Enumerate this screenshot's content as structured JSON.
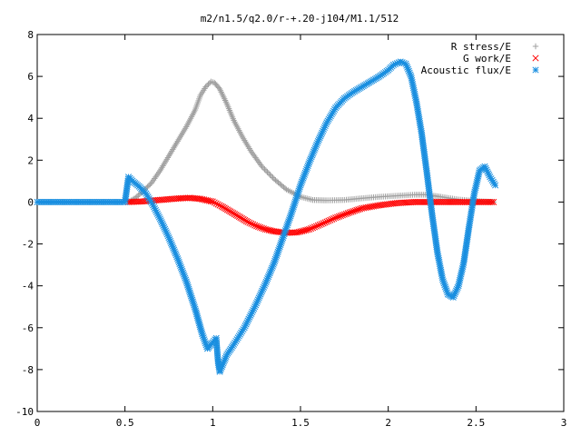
{
  "chart_data": {
    "type": "scatter",
    "title": "m2/n1.5/q2.0/r-+.20-j104/M1.1/512",
    "xlabel": "",
    "ylabel": "",
    "xlim": [
      0,
      3
    ],
    "ylim": [
      -10,
      8
    ],
    "xticks": [
      "0",
      "0.5",
      "1",
      "1.5",
      "2",
      "2.5",
      "3"
    ],
    "yticks": [
      "-10",
      "-8",
      "-6",
      "-4",
      "-2",
      "0",
      "2",
      "4",
      "6",
      "8"
    ],
    "grid": false,
    "legend_position": "top-right",
    "series": [
      {
        "name": "R stress/E",
        "color": "#a0a0a0",
        "marker": "plus",
        "points": [
          [
            0.52,
            0.0
          ],
          [
            0.56,
            0.2
          ],
          [
            0.6,
            0.5
          ],
          [
            0.65,
            0.9
          ],
          [
            0.7,
            1.5
          ],
          [
            0.75,
            2.2
          ],
          [
            0.8,
            2.9
          ],
          [
            0.85,
            3.6
          ],
          [
            0.9,
            4.4
          ],
          [
            0.93,
            5.1
          ],
          [
            0.96,
            5.5
          ],
          [
            0.99,
            5.75
          ],
          [
            1.01,
            5.7
          ],
          [
            1.04,
            5.4
          ],
          [
            1.08,
            4.7
          ],
          [
            1.12,
            3.9
          ],
          [
            1.17,
            3.1
          ],
          [
            1.22,
            2.4
          ],
          [
            1.28,
            1.7
          ],
          [
            1.35,
            1.1
          ],
          [
            1.42,
            0.6
          ],
          [
            1.5,
            0.25
          ],
          [
            1.57,
            0.1
          ],
          [
            1.65,
            0.08
          ],
          [
            1.75,
            0.1
          ],
          [
            1.85,
            0.18
          ],
          [
            1.95,
            0.25
          ],
          [
            2.05,
            0.3
          ],
          [
            2.15,
            0.35
          ],
          [
            2.22,
            0.35
          ],
          [
            2.3,
            0.25
          ],
          [
            2.4,
            0.12
          ],
          [
            2.5,
            0.05
          ],
          [
            2.6,
            0.0
          ]
        ]
      },
      {
        "name": "G work/E",
        "color": "#ff0000",
        "marker": "cross",
        "points": [
          [
            0.52,
            0.0
          ],
          [
            0.6,
            0.03
          ],
          [
            0.7,
            0.1
          ],
          [
            0.8,
            0.17
          ],
          [
            0.87,
            0.2
          ],
          [
            0.93,
            0.15
          ],
          [
            1.0,
            0.02
          ],
          [
            1.05,
            -0.2
          ],
          [
            1.1,
            -0.45
          ],
          [
            1.15,
            -0.7
          ],
          [
            1.2,
            -0.95
          ],
          [
            1.25,
            -1.15
          ],
          [
            1.3,
            -1.3
          ],
          [
            1.35,
            -1.4
          ],
          [
            1.42,
            -1.47
          ],
          [
            1.48,
            -1.45
          ],
          [
            1.55,
            -1.3
          ],
          [
            1.62,
            -1.05
          ],
          [
            1.7,
            -0.75
          ],
          [
            1.78,
            -0.5
          ],
          [
            1.85,
            -0.3
          ],
          [
            1.95,
            -0.15
          ],
          [
            2.05,
            -0.05
          ],
          [
            2.15,
            0.0
          ],
          [
            2.3,
            0.0
          ],
          [
            2.45,
            0.0
          ],
          [
            2.6,
            0.0
          ]
        ]
      },
      {
        "name": "Acoustic flux/E",
        "color": "#1a8fe0",
        "marker": "star",
        "points": [
          [
            0.0,
            0.0
          ],
          [
            0.1,
            0.0
          ],
          [
            0.2,
            0.0
          ],
          [
            0.3,
            0.0
          ],
          [
            0.4,
            0.0
          ],
          [
            0.5,
            0.0
          ],
          [
            0.52,
            1.2
          ],
          [
            0.55,
            0.95
          ],
          [
            0.58,
            0.75
          ],
          [
            0.62,
            0.4
          ],
          [
            0.66,
            -0.15
          ],
          [
            0.7,
            -0.8
          ],
          [
            0.75,
            -1.7
          ],
          [
            0.8,
            -2.7
          ],
          [
            0.85,
            -3.8
          ],
          [
            0.9,
            -5.1
          ],
          [
            0.94,
            -6.3
          ],
          [
            0.97,
            -7.0
          ],
          [
            1.0,
            -6.7
          ],
          [
            1.02,
            -6.5
          ],
          [
            1.03,
            -7.6
          ],
          [
            1.04,
            -8.1
          ],
          [
            1.06,
            -7.7
          ],
          [
            1.08,
            -7.3
          ],
          [
            1.12,
            -6.8
          ],
          [
            1.18,
            -6.0
          ],
          [
            1.24,
            -5.0
          ],
          [
            1.3,
            -3.9
          ],
          [
            1.35,
            -2.9
          ],
          [
            1.4,
            -1.7
          ],
          [
            1.45,
            -0.5
          ],
          [
            1.5,
            0.8
          ],
          [
            1.55,
            1.9
          ],
          [
            1.6,
            2.9
          ],
          [
            1.65,
            3.8
          ],
          [
            1.7,
            4.5
          ],
          [
            1.75,
            4.95
          ],
          [
            1.8,
            5.25
          ],
          [
            1.85,
            5.5
          ],
          [
            1.9,
            5.75
          ],
          [
            1.95,
            6.0
          ],
          [
            2.0,
            6.3
          ],
          [
            2.03,
            6.55
          ],
          [
            2.07,
            6.7
          ],
          [
            2.1,
            6.6
          ],
          [
            2.13,
            6.0
          ],
          [
            2.16,
            4.8
          ],
          [
            2.19,
            3.3
          ],
          [
            2.22,
            1.4
          ],
          [
            2.25,
            -0.6
          ],
          [
            2.28,
            -2.4
          ],
          [
            2.31,
            -3.7
          ],
          [
            2.34,
            -4.4
          ],
          [
            2.37,
            -4.55
          ],
          [
            2.4,
            -4.0
          ],
          [
            2.43,
            -2.9
          ],
          [
            2.46,
            -1.2
          ],
          [
            2.49,
            0.4
          ],
          [
            2.52,
            1.5
          ],
          [
            2.55,
            1.7
          ],
          [
            2.58,
            1.2
          ],
          [
            2.61,
            0.8
          ]
        ]
      }
    ]
  }
}
